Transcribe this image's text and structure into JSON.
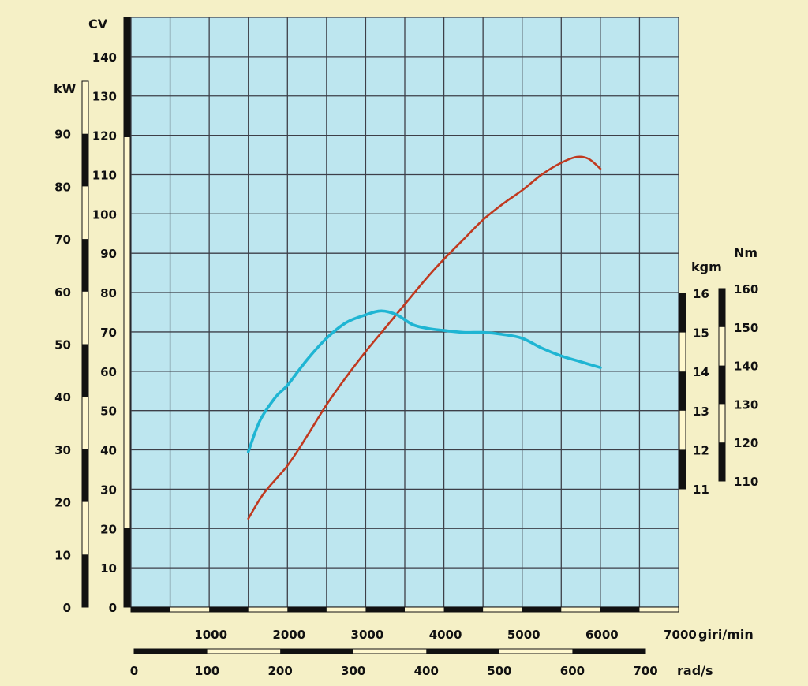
{
  "chart_data": {
    "type": "line",
    "xlabel": "giri/min",
    "xlim": [
      0,
      7000
    ],
    "x_ticks": [
      1000,
      2000,
      3000,
      4000,
      5000,
      6000,
      7000
    ],
    "secondary_x": {
      "label": "rad/s",
      "lim": [
        0,
        700
      ],
      "ticks": [
        0,
        100,
        200,
        300,
        400,
        500,
        600,
        700
      ]
    },
    "axes": {
      "cv": {
        "label": "CV",
        "lim": [
          0,
          150
        ],
        "ticks": [
          0,
          10,
          20,
          30,
          40,
          50,
          60,
          70,
          80,
          90,
          100,
          110,
          120,
          130,
          140
        ]
      },
      "kw": {
        "label": "kW",
        "lim": [
          0,
          100
        ],
        "ticks": [
          0,
          10,
          20,
          30,
          40,
          50,
          60,
          70,
          80,
          90
        ]
      },
      "kgm": {
        "label": "kgm",
        "lim": [
          11,
          16
        ],
        "ticks": [
          11,
          12,
          13,
          14,
          15,
          16
        ]
      },
      "nm": {
        "label": "Nm",
        "lim": [
          110,
          160
        ],
        "ticks": [
          110,
          120,
          130,
          140,
          150,
          160
        ]
      }
    },
    "grid": true,
    "series": [
      {
        "axis": "cv",
        "color": "#c0391f",
        "x": [
          1500,
          1700,
          2000,
          2250,
          2500,
          2750,
          3000,
          3250,
          3500,
          3750,
          4000,
          4250,
          4500,
          4750,
          5000,
          5250,
          5500,
          5700,
          5850,
          6000
        ],
        "y": [
          22.5,
          29,
          36,
          43.5,
          51.5,
          58.5,
          65,
          71,
          77,
          83,
          88.5,
          93.5,
          98.5,
          102.5,
          106,
          110,
          113,
          114.5,
          114,
          111.5
        ]
      },
      {
        "axis": "kgm",
        "color": "#1fb5d3",
        "x": [
          1500,
          1650,
          1850,
          2000,
          2250,
          2500,
          2750,
          3000,
          3200,
          3400,
          3600,
          3800,
          4000,
          4250,
          4500,
          4750,
          5000,
          5250,
          5500,
          5750,
          6000
        ],
        "y": [
          11.95,
          12.75,
          13.35,
          13.65,
          14.3,
          14.85,
          15.25,
          15.45,
          15.55,
          15.45,
          15.2,
          15.1,
          15.05,
          15.0,
          15.0,
          14.95,
          14.85,
          14.6,
          14.4,
          14.25,
          14.1
        ]
      }
    ]
  }
}
